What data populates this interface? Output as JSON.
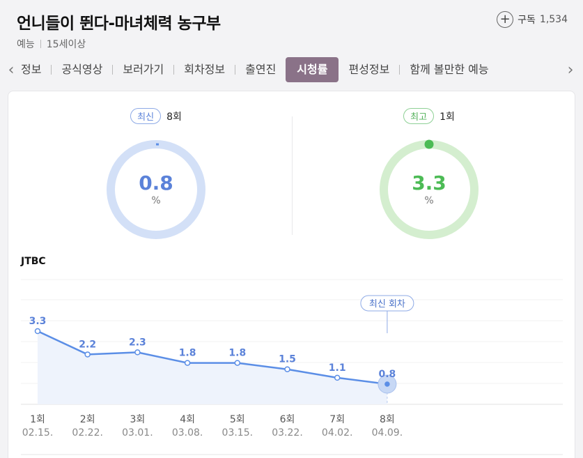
{
  "header": {
    "title": "언니들이 뛴다-마녀체력 농구부",
    "genre": "예능",
    "rating": "15세이상",
    "subscribe_label": "구독",
    "subscribe_count": "1,534"
  },
  "tabs": [
    {
      "label": "정보",
      "active": false
    },
    {
      "label": "공식영상",
      "active": false
    },
    {
      "label": "보러가기",
      "active": false
    },
    {
      "label": "회차정보",
      "active": false
    },
    {
      "label": "출연진",
      "active": false
    },
    {
      "label": "시청률",
      "active": true
    },
    {
      "label": "편성정보",
      "active": false
    },
    {
      "label": "함께 볼만한 예능",
      "active": false
    }
  ],
  "latest": {
    "badge": "최신",
    "episode": "8회",
    "value": "0.8",
    "unit": "%",
    "fraction": 0.008
  },
  "best": {
    "badge": "최고",
    "episode": "1회",
    "value": "3.3",
    "unit": "%",
    "fraction": 0.033
  },
  "colors": {
    "blue": "#5b8ee6",
    "blue_light": "#d3e0f7",
    "green": "#4cbb55",
    "green_light": "#d4eecf",
    "tab_active": "#8a7288"
  },
  "chart_data": {
    "type": "line",
    "channel": "JTBC",
    "callout": "최신 회차",
    "callout_episode_index": 7,
    "categories": [
      "1회",
      "2회",
      "3회",
      "4회",
      "5회",
      "6회",
      "7회",
      "8회"
    ],
    "dates": [
      "02.15.",
      "02.22.",
      "03.01.",
      "03.08.",
      "03.15.",
      "03.22.",
      "04.02.",
      "04.09."
    ],
    "values": [
      3.3,
      2.2,
      2.3,
      1.8,
      1.8,
      1.5,
      1.1,
      0.8
    ],
    "labels": [
      "3.3",
      "2.2",
      "2.3",
      "1.8",
      "1.8",
      "1.5",
      "1.1",
      "0.8"
    ],
    "grid": true
  }
}
